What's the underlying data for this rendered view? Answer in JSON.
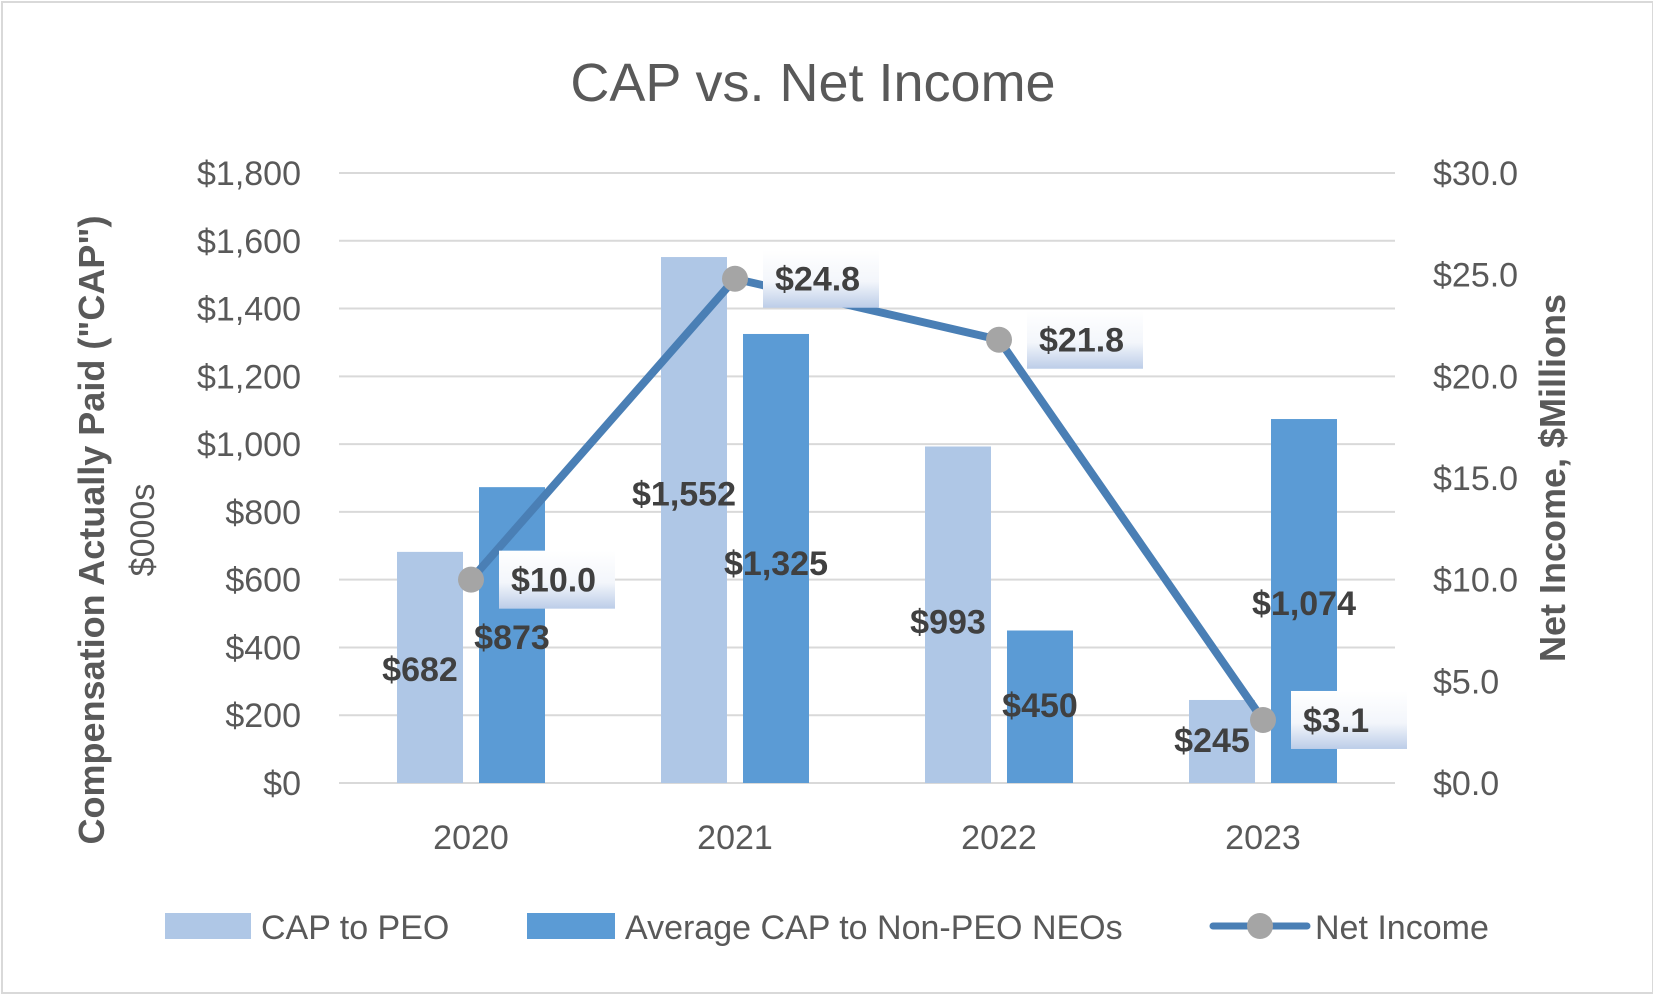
{
  "chart_data": {
    "type": "bar",
    "title": "CAP vs. Net Income",
    "categories": [
      "2020",
      "2021",
      "2022",
      "2023"
    ],
    "ylabel": "Compensation Actually Paid (\"CAP\")",
    "ylabel_sub": "$000s",
    "y2label": "Net Income, $Millions",
    "ylim": [
      0,
      1800
    ],
    "y2lim": [
      0,
      30
    ],
    "y_ticks": [
      "$0",
      "$200",
      "$400",
      "$600",
      "$800",
      "$1,000",
      "$1,200",
      "$1,400",
      "$1,600",
      "$1,800"
    ],
    "y2_ticks": [
      "$0.0",
      "$5.0",
      "$10.0",
      "$15.0",
      "$20.0",
      "$25.0",
      "$30.0"
    ],
    "grid": true,
    "legend_position": "bottom",
    "series": [
      {
        "name": "CAP to PEO",
        "type": "bar",
        "axis": "left",
        "color": "#afc7e6",
        "values": [
          682,
          1552,
          993,
          245
        ],
        "labels": [
          "$682",
          "$1,552",
          "$993",
          "$245"
        ]
      },
      {
        "name": "Average CAP to Non-PEO NEOs",
        "type": "bar",
        "axis": "left",
        "color": "#5b9bd5",
        "values": [
          873,
          1325,
          450,
          1074
        ],
        "labels": [
          "$873",
          "$1,325",
          "$450",
          "$1,074"
        ]
      },
      {
        "name": "Net Income",
        "type": "line",
        "axis": "right",
        "color": "#4a7fb5",
        "marker_color": "#a5a5a5",
        "values": [
          10.0,
          24.8,
          21.8,
          3.1
        ],
        "labels": [
          "$10.0",
          "$24.8",
          "$21.8",
          "$3.1"
        ]
      }
    ]
  }
}
